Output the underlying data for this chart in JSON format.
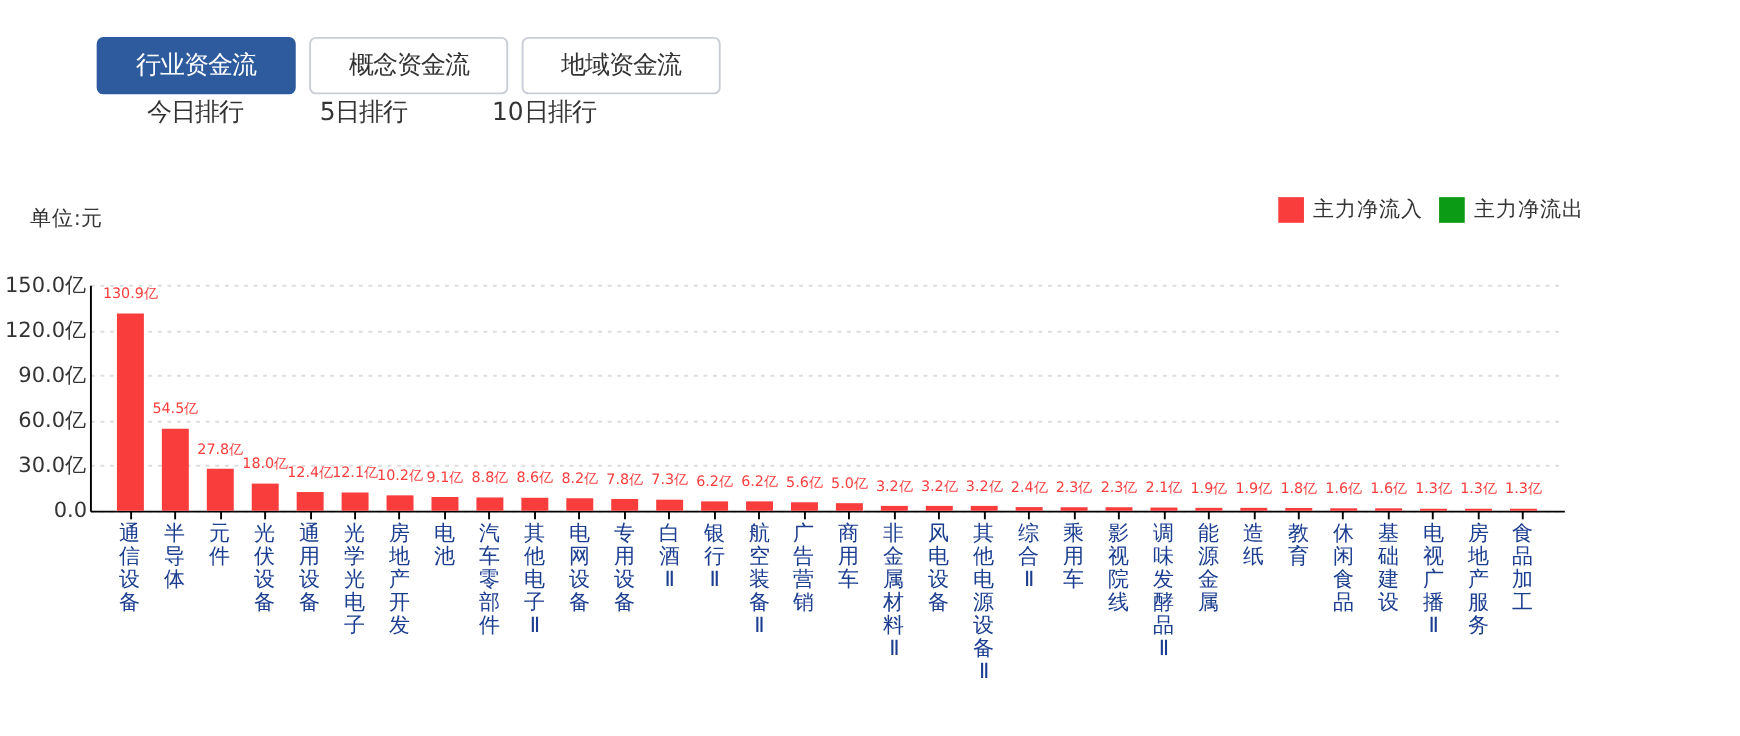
{
  "chart_data": {
    "type": "bar",
    "ylabel": "单位:元",
    "annotations": [
      "行业资金流",
      "概念资金流",
      "地域资金流",
      "今日排行",
      "5日排行",
      "10日排行"
    ],
    "categories": [
      "通信设备",
      "半导体",
      "元件",
      "光伏设备",
      "通用设备",
      "光学光电子",
      "房地产开发",
      "电池",
      "汽车零部件",
      "其他电子Ⅱ",
      "电网设备",
      "专用设备",
      "白酒Ⅱ",
      "银行Ⅱ",
      "航空装备Ⅱ",
      "广告营销",
      "商用车",
      "非金属材料Ⅱ",
      "风电设备",
      "其他电源设备Ⅱ",
      "综合Ⅱ",
      "乘用车",
      "影视院线",
      "调味发酵品Ⅱ",
      "能源金属",
      "造纸",
      "教育",
      "休闲食品",
      "基础建设",
      "电视广播Ⅱ",
      "房地产服务",
      "食品加工"
    ],
    "series": [
      {
        "name": "主力净流入",
        "color": "#f93d3d",
        "values": [
          130.9,
          54.5,
          27.8,
          18.0,
          12.4,
          12.1,
          10.2,
          9.1,
          8.8,
          8.6,
          8.2,
          7.8,
          7.3,
          6.2,
          6.2,
          5.6,
          5.0,
          3.2,
          3.2,
          3.2,
          2.4,
          2.3,
          2.3,
          2.1,
          1.9,
          1.9,
          1.8,
          1.6,
          1.6,
          1.3,
          1.3,
          1.3
        ],
        "value_labels": [
          "130.9亿",
          "54.5亿",
          "27.8亿",
          "18.0亿",
          "12.4亿",
          "12.1亿",
          "10.2亿",
          "9.1亿",
          "8.8亿",
          "8.6亿",
          "8.2亿",
          "7.8亿",
          "7.3亿",
          "6.2亿",
          "6.2亿",
          "5.6亿",
          "5.0亿",
          "3.2亿",
          "3.2亿",
          "3.2亿",
          "2.4亿",
          "2.3亿",
          "2.3亿",
          "2.1亿",
          "1.9亿",
          "1.9亿",
          "1.8亿",
          "1.6亿",
          "1.6亿",
          "1.3亿",
          "1.3亿",
          "1.3亿"
        ]
      },
      {
        "name": "主力净流出",
        "color": "#0b9b15",
        "values": [
          null,
          null,
          null,
          null,
          null,
          null,
          null,
          null,
          null,
          null,
          null,
          null,
          null,
          null,
          null,
          null,
          null,
          null,
          null,
          null,
          null,
          null,
          null,
          null,
          null,
          null,
          null,
          null,
          null,
          null,
          null,
          null
        ]
      }
    ],
    "ylim": [
      0,
      150
    ],
    "yticks": [
      {
        "value": 0,
        "label": "0.0"
      },
      {
        "value": 30,
        "label": "30.0亿"
      },
      {
        "value": 60,
        "label": "60.0亿"
      },
      {
        "value": 90,
        "label": "90.0亿"
      },
      {
        "value": 120,
        "label": "120.0亿"
      },
      {
        "value": 150,
        "label": "150.0亿"
      }
    ],
    "grid": "y",
    "legend": "top right"
  }
}
